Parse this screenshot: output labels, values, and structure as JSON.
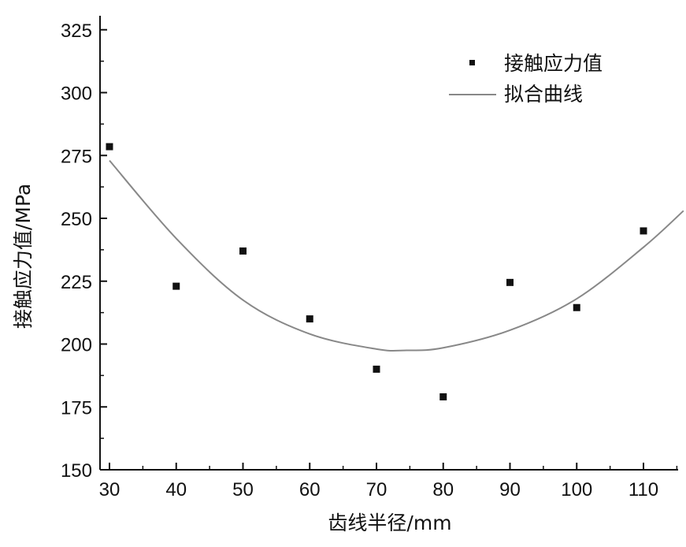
{
  "chart_data": {
    "type": "scatter",
    "xlabel": "齿线半径/mm",
    "ylabel": "接触应力值/MPa",
    "xlim": [
      28.5,
      116
    ],
    "ylim": [
      150,
      330
    ],
    "x_ticks": [
      30,
      40,
      50,
      60,
      70,
      80,
      90,
      100,
      110
    ],
    "y_ticks": [
      150,
      175,
      200,
      225,
      250,
      275,
      300,
      325
    ],
    "grid": false,
    "legend_position": "top-right",
    "series": [
      {
        "name": "接触应力值",
        "kind": "points",
        "x": [
          30,
          40,
          50,
          60,
          70,
          80,
          90,
          100,
          110
        ],
        "y": [
          278.5,
          223,
          237,
          210,
          190,
          179,
          224.5,
          214.5,
          245
        ]
      },
      {
        "name": "拟合曲线",
        "kind": "line",
        "x": [
          30,
          40,
          50,
          60,
          70,
          74.5,
          80,
          90,
          100,
          110,
          116
        ],
        "y": [
          273,
          242,
          217.5,
          204,
          198,
          197.5,
          198.5,
          205.5,
          218,
          238.5,
          253
        ]
      }
    ]
  }
}
